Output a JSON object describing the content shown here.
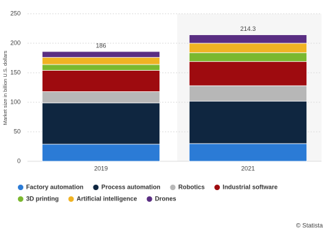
{
  "chart_data": {
    "type": "bar",
    "stacked": true,
    "y_label": "Market size in billion U.S. dollars",
    "categories": [
      "2019",
      "2021"
    ],
    "series": [
      {
        "name": "Factory automation",
        "color": "#2b7bd6",
        "values": [
          29,
          30
        ]
      },
      {
        "name": "Process automation",
        "color": "#0f2640",
        "values": [
          70,
          72
        ]
      },
      {
        "name": "Robotics",
        "color": "#b7b7b7",
        "values": [
          19,
          26
        ]
      },
      {
        "name": "Industrial software",
        "color": "#9e0b0f",
        "values": [
          36,
          41
        ]
      },
      {
        "name": "3D printing",
        "color": "#7bb82f",
        "values": [
          10,
          15
        ]
      },
      {
        "name": "Artificial intelligence",
        "color": "#f0b323",
        "values": [
          12,
          16
        ]
      },
      {
        "name": "Drones",
        "color": "#5a2e82",
        "values": [
          10,
          14.3
        ]
      }
    ],
    "totals": [
      186,
      214.3
    ],
    "ylim": [
      0,
      250
    ],
    "yticks": [
      0,
      50,
      100,
      150,
      200,
      250
    ],
    "grid": true,
    "credit": "© Statista"
  }
}
